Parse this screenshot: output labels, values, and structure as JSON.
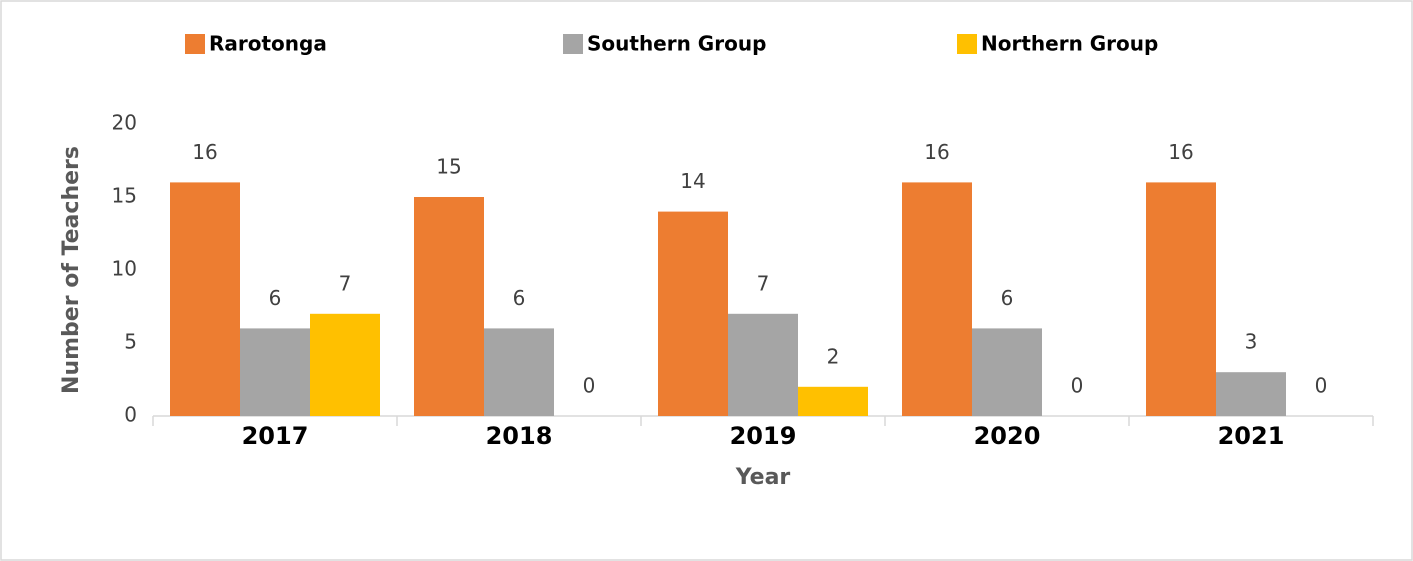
{
  "chart_data": {
    "type": "bar",
    "categories": [
      "2017",
      "2018",
      "2019",
      "2020",
      "2021"
    ],
    "series": [
      {
        "name": "Rarotonga",
        "color": "#ED7D31",
        "values": [
          16,
          15,
          14,
          16,
          16
        ]
      },
      {
        "name": "Southern Group",
        "color": "#A5A5A5",
        "values": [
          6,
          6,
          7,
          6,
          3
        ]
      },
      {
        "name": "Northern Group",
        "color": "#FFC000",
        "values": [
          7,
          0,
          2,
          0,
          0
        ]
      }
    ],
    "x_label": "Year",
    "y_label": "Number of Teachers",
    "ylim": [
      0,
      20
    ],
    "yticks": [
      0,
      5,
      10,
      15,
      20
    ],
    "legend": "top",
    "grid": false
  }
}
